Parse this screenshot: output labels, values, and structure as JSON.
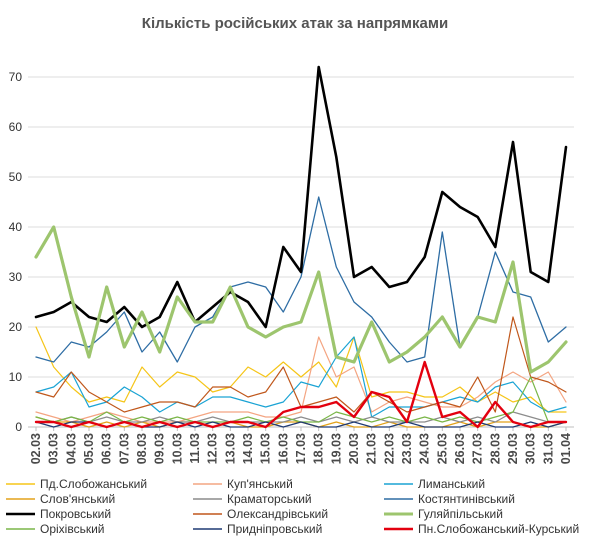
{
  "chart_data": {
    "type": "line",
    "title": "Кількість російських атак за напрямками",
    "xlabel": "",
    "ylabel": "",
    "ylim": [
      0,
      75
    ],
    "yticks": [
      0,
      10,
      20,
      30,
      40,
      50,
      60,
      70
    ],
    "grid": true,
    "legend_position": "bottom",
    "x": [
      "02.03",
      "03.03",
      "04.03",
      "05.03",
      "06.03",
      "07.03",
      "08.03",
      "09.03",
      "10.03",
      "11.03",
      "12.03",
      "13.03",
      "14.03",
      "15.03",
      "16.03",
      "17.03",
      "18.03",
      "19.03",
      "20.03",
      "21.03",
      "22.03",
      "23.03",
      "24.03",
      "25.03",
      "26.03",
      "27.03",
      "28.03",
      "29.03",
      "30.03",
      "31.03",
      "01.04"
    ],
    "series": [
      {
        "name": "Пд.Слобожанський",
        "color": "#f5c518",
        "width": 1.2,
        "values": [
          20,
          12,
          8,
          5,
          6,
          5,
          12,
          8,
          11,
          10,
          7,
          8,
          12,
          10,
          13,
          10,
          13,
          8,
          18,
          6,
          7,
          7,
          6,
          6,
          8,
          5,
          7,
          5,
          6,
          3,
          3
        ]
      },
      {
        "name": "Куп'янський",
        "color": "#f4a582",
        "width": 1.2,
        "values": [
          3,
          2,
          1,
          2,
          3,
          2,
          1,
          1,
          1,
          2,
          3,
          3,
          3,
          2,
          2,
          3,
          18,
          10,
          12,
          3,
          5,
          6,
          5,
          4,
          4,
          6,
          9,
          11,
          9,
          11,
          5
        ]
      },
      {
        "name": "Лиманський",
        "color": "#1aa3d4",
        "width": 1.2,
        "values": [
          7,
          8,
          11,
          4,
          5,
          8,
          6,
          3,
          5,
          4,
          6,
          6,
          5,
          4,
          5,
          9,
          8,
          14,
          18,
          2,
          4,
          4,
          4,
          5,
          6,
          5,
          8,
          9,
          5,
          3,
          4
        ]
      },
      {
        "name": "Слов'янський",
        "color": "#e3a21a",
        "width": 1.2,
        "values": [
          2,
          1,
          1,
          0,
          1,
          0,
          1,
          0,
          1,
          1,
          0,
          1,
          0,
          0,
          1,
          1,
          0,
          1,
          0,
          0,
          1,
          0,
          0,
          0,
          1,
          0,
          1,
          1,
          0,
          0,
          1
        ]
      },
      {
        "name": "Краматорський",
        "color": "#8c8c8c",
        "width": 1.2,
        "values": [
          1,
          1,
          2,
          1,
          2,
          1,
          1,
          2,
          1,
          1,
          2,
          1,
          1,
          1,
          1,
          2,
          1,
          2,
          1,
          2,
          1,
          1,
          1,
          2,
          1,
          2,
          1,
          3,
          2,
          1,
          1
        ]
      },
      {
        "name": "Костянтинівський",
        "color": "#2e6da4",
        "width": 1.3,
        "values": [
          14,
          13,
          17,
          16,
          19,
          23,
          15,
          19,
          13,
          20,
          22,
          28,
          29,
          28,
          23,
          30,
          46,
          32,
          25,
          22,
          17,
          13,
          14,
          39,
          16,
          22,
          35,
          27,
          26,
          17,
          20
        ]
      },
      {
        "name": "Покровський",
        "color": "#000000",
        "width": 2.6,
        "values": [
          22,
          23,
          25,
          22,
          21,
          24,
          20,
          22,
          29,
          21,
          24,
          27,
          25,
          20,
          36,
          31,
          72,
          54,
          30,
          32,
          28,
          29,
          34,
          47,
          44,
          42,
          36,
          57,
          31,
          29,
          56
        ]
      },
      {
        "name": "Олександрівський",
        "color": "#c0571b",
        "width": 1.2,
        "values": [
          7,
          6,
          11,
          7,
          5,
          3,
          4,
          5,
          5,
          4,
          8,
          8,
          6,
          7,
          12,
          4,
          5,
          6,
          3,
          7,
          5,
          3,
          4,
          5,
          4,
          10,
          3,
          22,
          10,
          9,
          7
        ]
      },
      {
        "name": "Гуляйпільський",
        "color": "#9dc56e",
        "width": 3.2,
        "values": [
          34,
          40,
          26,
          14,
          28,
          16,
          23,
          15,
          26,
          21,
          21,
          28,
          20,
          18,
          20,
          21,
          31,
          14,
          13,
          21,
          13,
          15,
          18,
          22,
          16,
          22,
          21,
          33,
          11,
          13,
          17
        ]
      },
      {
        "name": "Оріхівський",
        "color": "#7ab648",
        "width": 1.2,
        "values": [
          2,
          1,
          2,
          1,
          3,
          1,
          2,
          1,
          2,
          1,
          1,
          1,
          2,
          1,
          2,
          1,
          1,
          3,
          2,
          1,
          2,
          1,
          2,
          1,
          2,
          1,
          2,
          3,
          10,
          1,
          1
        ]
      },
      {
        "name": "Придніпровський",
        "color": "#1f3a73",
        "width": 1.2,
        "values": [
          1,
          0,
          1,
          1,
          0,
          1,
          0,
          0,
          1,
          0,
          1,
          0,
          0,
          1,
          0,
          1,
          0,
          0,
          1,
          0,
          0,
          1,
          0,
          0,
          0,
          1,
          0,
          0,
          1,
          0,
          1
        ]
      },
      {
        "name": "Пн.Слобожанський-Курський",
        "color": "#e3000f",
        "width": 2.4,
        "values": [
          1,
          1,
          0,
          1,
          0,
          1,
          0,
          1,
          0,
          1,
          0,
          1,
          1,
          0,
          3,
          4,
          4,
          5,
          2,
          7,
          6,
          1,
          13,
          2,
          3,
          0,
          5,
          1,
          0,
          1,
          1
        ]
      }
    ]
  }
}
